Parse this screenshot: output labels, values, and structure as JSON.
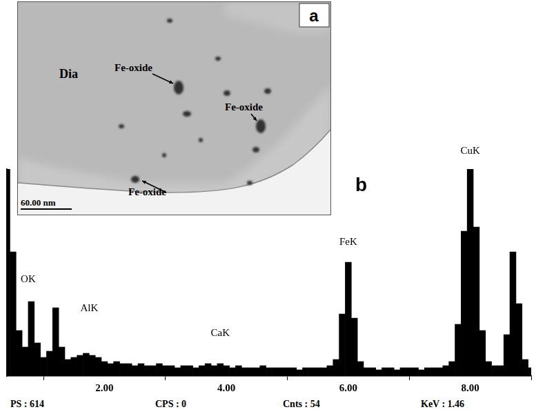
{
  "chart_data": {
    "type": "bar",
    "x": [
      0.4,
      0.5,
      0.6,
      0.7,
      0.8,
      0.9,
      1.0,
      1.1,
      1.2,
      1.3,
      1.4,
      1.5,
      1.6,
      1.7,
      1.8,
      1.9,
      2.0,
      2.1,
      2.2,
      2.3,
      2.4,
      2.5,
      2.6,
      2.7,
      2.8,
      2.9,
      3.0,
      3.1,
      3.2,
      3.3,
      3.4,
      3.5,
      3.6,
      3.7,
      3.8,
      3.9,
      4.0,
      4.1,
      4.2,
      4.3,
      4.4,
      4.5,
      4.6,
      4.7,
      4.8,
      4.9,
      5.0,
      5.1,
      5.2,
      5.3,
      5.4,
      5.5,
      5.6,
      5.7,
      5.8,
      5.9,
      6.0,
      6.1,
      6.2,
      6.3,
      6.4,
      6.5,
      6.6,
      6.7,
      6.8,
      6.9,
      7.0,
      7.1,
      7.2,
      7.3,
      7.4,
      7.5,
      7.6,
      7.7,
      7.8,
      7.9,
      8.0,
      8.1,
      8.2,
      8.3,
      8.4,
      8.5,
      8.6,
      8.7,
      8.8,
      8.9,
      9.0
    ],
    "values": [
      100,
      60,
      22,
      14,
      36,
      16,
      9,
      12,
      33,
      14,
      8,
      9,
      10,
      11,
      10,
      9,
      7,
      6,
      7,
      6,
      6,
      5,
      6,
      5,
      5,
      6,
      5,
      5,
      4,
      5,
      5,
      4,
      5,
      6,
      5,
      6,
      5,
      4,
      5,
      4,
      4,
      4,
      5,
      4,
      4,
      4,
      4,
      4,
      3,
      4,
      4,
      4,
      4,
      5,
      8,
      30,
      55,
      28,
      7,
      4,
      4,
      3,
      4,
      4,
      3,
      4,
      4,
      4,
      3,
      4,
      4,
      4,
      5,
      7,
      25,
      70,
      100,
      72,
      22,
      7,
      5,
      5,
      20,
      60,
      35,
      8,
      4
    ],
    "color": "#000000",
    "xlim": [
      0.4,
      9.0
    ],
    "xticks": [
      {
        "value": 2,
        "label": "2.00"
      },
      {
        "value": 4,
        "label": "4.00"
      },
      {
        "value": 6,
        "label": "6.00"
      },
      {
        "value": 8,
        "label": "8.00"
      }
    ],
    "ylim": [
      0,
      100
    ],
    "tick_labels": "x",
    "grid": false,
    "annotations": [
      {
        "text": "OK",
        "x": 0.75,
        "y": 44
      },
      {
        "text": "AlK",
        "x": 1.75,
        "y": 30
      },
      {
        "text": "CaK",
        "x": 3.9,
        "y": 18
      },
      {
        "text": "FeK",
        "x": 6.0,
        "y": 62
      },
      {
        "text": "CuK",
        "x": 8.0,
        "y": 106
      }
    ],
    "panel_label": "b",
    "footer": [
      "PS : 614",
      "CPS : 0",
      "Cnts : 54",
      "KeV : 1.46"
    ]
  },
  "image": {
    "panel_label": "a",
    "region_label": "Dia",
    "labels": [
      "Fe-oxide",
      "Fe-oxide",
      "Fe-oxide"
    ],
    "scale_bar": "60.00 nm"
  }
}
